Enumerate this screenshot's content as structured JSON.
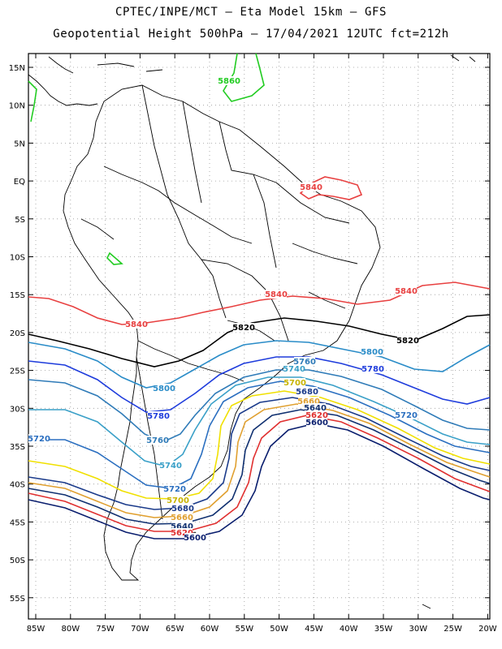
{
  "title_line1": "CPTEC/INPE/MCT –  Eta Model 15km – GFS",
  "title_line2": "Geopotential Height 500hPa – 17/04/2021 12UTC fct=212h",
  "lat_labels": [
    "15N",
    "10N",
    "5N",
    "EQ",
    "5S",
    "10S",
    "15S",
    "20S",
    "25S",
    "30S",
    "35S",
    "40S",
    "45S",
    "50S",
    "55S"
  ],
  "lon_labels": [
    "85W",
    "80W",
    "75W",
    "70W",
    "65W",
    "60W",
    "55W",
    "50W",
    "45W",
    "40W",
    "35W",
    "30W",
    "25W",
    "20W"
  ],
  "contours": [
    {
      "value": "5860",
      "color": "#22cc22"
    },
    {
      "value": "5840",
      "color": "#e84040"
    },
    {
      "value": "5820",
      "color": "#000000"
    },
    {
      "value": "5800",
      "color": "#2a8cc8"
    },
    {
      "value": "5780",
      "color": "#1e3cdc"
    },
    {
      "value": "5760",
      "color": "#2f7bb8"
    },
    {
      "value": "5740",
      "color": "#3aa0c8"
    },
    {
      "value": "5720",
      "color": "#2b6fc0"
    },
    {
      "value": "5700",
      "color": "#f0e000"
    },
    {
      "value": "5680",
      "color": "#1a3a8a"
    },
    {
      "value": "5660",
      "color": "#e0a030"
    },
    {
      "value": "5640",
      "color": "#103070"
    },
    {
      "value": "5620",
      "color": "#e03030"
    },
    {
      "value": "5600",
      "color": "#0a1e6e"
    }
  ],
  "contour_labels": [
    {
      "text": "5860",
      "color": "#22cc22"
    },
    {
      "text": "5840",
      "color": "#e84040"
    },
    {
      "text": "5840",
      "color": "#e84040"
    },
    {
      "text": "5840",
      "color": "#e84040"
    },
    {
      "text": "5840",
      "color": "#e84040"
    },
    {
      "text": "5820",
      "color": "#000000"
    },
    {
      "text": "5820",
      "color": "#000000"
    },
    {
      "text": "5800",
      "color": "#2a8cc8"
    },
    {
      "text": "5800",
      "color": "#2a8cc8"
    },
    {
      "text": "5780",
      "color": "#1e3cdc"
    },
    {
      "text": "5780",
      "color": "#1e3cdc"
    },
    {
      "text": "5760",
      "color": "#2f7bb8"
    },
    {
      "text": "5760",
      "color": "#2f7bb8"
    },
    {
      "text": "5740",
      "color": "#3aa0c8"
    },
    {
      "text": "5740",
      "color": "#3aa0c8"
    },
    {
      "text": "5720",
      "color": "#2b6fc0"
    },
    {
      "text": "5720",
      "color": "#2b6fc0"
    },
    {
      "text": "5720",
      "color": "#2b6fc0"
    },
    {
      "text": "5700",
      "color": "#c8b400"
    },
    {
      "text": "5700",
      "color": "#c8b400"
    },
    {
      "text": "5680",
      "color": "#1a3a8a"
    },
    {
      "text": "5680",
      "color": "#1a3a8a"
    },
    {
      "text": "5660",
      "color": "#e0a030"
    },
    {
      "text": "5660",
      "color": "#e0a030"
    },
    {
      "text": "5640",
      "color": "#103070"
    },
    {
      "text": "5640",
      "color": "#103070"
    },
    {
      "text": "5620",
      "color": "#e03030"
    },
    {
      "text": "5620",
      "color": "#e03030"
    },
    {
      "text": "5600",
      "color": "#0a1e6e"
    },
    {
      "text": "5600",
      "color": "#0a1e6e"
    }
  ]
}
